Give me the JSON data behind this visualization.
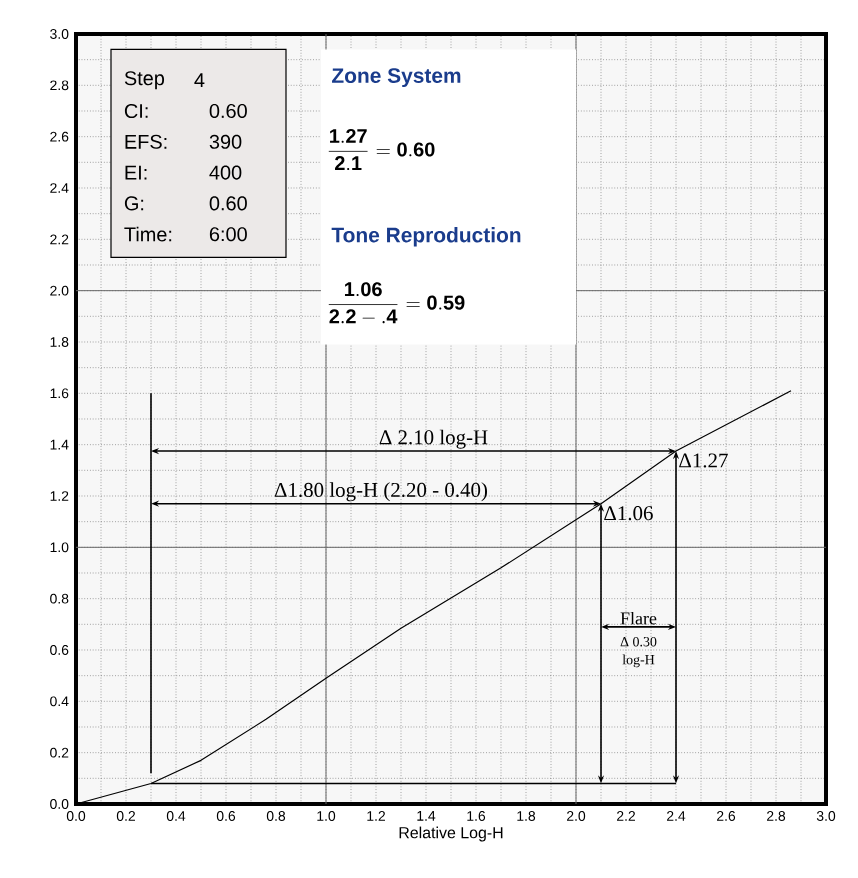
{
  "chart_data": {
    "type": "line",
    "xlabel": "Relative Log-H",
    "x": [
      0,
      0.3,
      0.5,
      0.76,
      1.0,
      1.3,
      1.7,
      2.1,
      2.4,
      2.86
    ],
    "series": [
      {
        "color": "#000000",
        "values": [
          0,
          0.08,
          0.17,
          0.33,
          0.49,
          0.685,
          0.92,
          1.17,
          1.375,
          1.61
        ]
      },
      {
        "type": "line",
        "color": "#000000",
        "x": [
          0.3,
          0.3
        ],
        "values": [
          0.12,
          1.6
        ]
      }
    ],
    "xlim": [
      0,
      3
    ],
    "ylim": [
      0,
      3
    ],
    "xticks": [
      {
        "value": 0,
        "label": "0.0"
      },
      {
        "value": 0.2,
        "label": "0.2"
      },
      {
        "value": 0.4,
        "label": "0.4"
      },
      {
        "value": 0.6,
        "label": "0.6"
      },
      {
        "value": 0.8,
        "label": "0.8"
      },
      {
        "value": 1,
        "label": "1.0"
      },
      {
        "value": 1.2,
        "label": "1.2"
      },
      {
        "value": 1.4,
        "label": "1.4"
      },
      {
        "value": 1.6,
        "label": "1.6"
      },
      {
        "value": 1.8,
        "label": "1.8"
      },
      {
        "value": 2,
        "label": "2.0"
      },
      {
        "value": 2.2,
        "label": "2.2"
      },
      {
        "value": 2.4,
        "label": "2.4"
      },
      {
        "value": 2.6,
        "label": "2.6"
      },
      {
        "value": 2.8,
        "label": "2.8"
      },
      {
        "value": 3,
        "label": "3.0"
      }
    ],
    "yticks": [
      {
        "value": 0,
        "label": "0.0"
      },
      {
        "value": 0.2,
        "label": "0.2"
      },
      {
        "value": 0.4,
        "label": "0.4"
      },
      {
        "value": 0.6,
        "label": "0.6"
      },
      {
        "value": 0.8,
        "label": "0.8"
      },
      {
        "value": 1,
        "label": "1.0"
      },
      {
        "value": 1.2,
        "label": "1.2"
      },
      {
        "value": 1.4,
        "label": "1.4"
      },
      {
        "value": 1.6,
        "label": "1.6"
      },
      {
        "value": 1.8,
        "label": "1.8"
      },
      {
        "value": 2,
        "label": "2.0"
      },
      {
        "value": 2.2,
        "label": "2.2"
      },
      {
        "value": 2.4,
        "label": "2.4"
      },
      {
        "value": 2.6,
        "label": "2.6"
      },
      {
        "value": 2.8,
        "label": "2.8"
      },
      {
        "value": 3,
        "label": "3.0"
      }
    ],
    "grid": true,
    "marker": "none",
    "line_style": "solid",
    "annotations": [
      "Step",
      "4",
      "CI:",
      "0.60",
      "EFS:",
      "390",
      "EI:",
      "400",
      "G:",
      "0.60",
      "Time:",
      "6:00",
      "Zone System",
      "\\frac{\\mathbf{1.27}}{\\mathbf{2.1}} = \\mathbf{0.60}",
      "Tone Reproduction",
      "\\frac{\\mathbf{1.06}}{\\mathbf{2.2 - .4}} = \\mathbf{0.59}",
      "Δ 2.10 log-H",
      "Δ1.80 log-H (2.20 - 0.40)",
      {
        "text": "Δ1.27",
        "x": 2.4,
        "y": 1.375
      },
      {
        "text": "Δ1.06",
        "x": 2.1,
        "y": 1.17
      },
      "Flare",
      "Δ 0.30",
      "log-H"
    ]
  }
}
